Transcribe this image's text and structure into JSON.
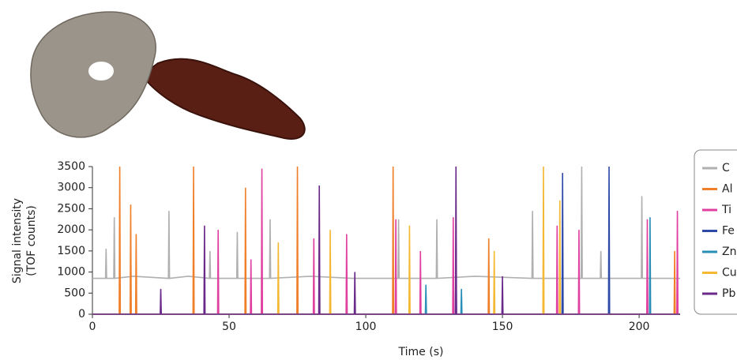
{
  "chart_data": {
    "type": "line",
    "xlabel": "Time (s)",
    "ylabel": [
      "Signal intensity",
      "(TOF counts)"
    ],
    "xlim": [
      0,
      215
    ],
    "xticks": [
      0,
      50,
      100,
      150,
      200
    ],
    "ylim": [
      0,
      3500
    ],
    "yticks": [
      0,
      500,
      1000,
      1500,
      2000,
      2500,
      3000,
      3500
    ],
    "legend": "right",
    "series": [
      {
        "name": "C",
        "color": "#b0b0b0",
        "x": [
          0,
          4.8,
          5,
          5.2,
          7.8,
          8,
          8.2,
          15,
          27.8,
          28,
          28.2,
          35,
          42.8,
          43,
          43.2,
          52.8,
          53,
          53.2,
          64.8,
          65,
          65.2,
          80,
          95,
          111.8,
          112,
          112.2,
          125.8,
          126,
          126.2,
          140,
          160.8,
          161,
          161.2,
          178.8,
          179,
          179.2,
          185.8,
          186,
          186.2,
          200.8,
          201,
          201.2,
          215
        ],
        "values": [
          850,
          850,
          1550,
          850,
          850,
          2300,
          850,
          900,
          850,
          2450,
          850,
          900,
          850,
          1500,
          850,
          850,
          1950,
          850,
          850,
          2250,
          850,
          900,
          850,
          850,
          2250,
          850,
          850,
          2250,
          850,
          900,
          850,
          2450,
          850,
          850,
          3500,
          850,
          850,
          1500,
          850,
          850,
          2800,
          850,
          850
        ]
      },
      {
        "name": "Al",
        "color": "#f07f2a",
        "x": [
          0,
          9.8,
          10,
          10.2,
          13.8,
          14,
          14.2,
          15.8,
          16,
          16.2,
          36.8,
          37,
          37.2,
          55.8,
          56,
          56.2,
          74.8,
          75,
          75.2,
          109.8,
          110,
          110.2,
          144.8,
          145,
          145.2,
          212.8,
          213,
          213.2,
          215
        ],
        "values": [
          0,
          0,
          3500,
          0,
          0,
          2600,
          0,
          0,
          1900,
          0,
          0,
          3500,
          0,
          0,
          3000,
          0,
          0,
          3500,
          0,
          0,
          3500,
          0,
          0,
          1800,
          0,
          0,
          1500,
          0,
          0
        ]
      },
      {
        "name": "Ti",
        "color": "#e040a0",
        "x": [
          0,
          45.8,
          46,
          46.2,
          57.8,
          58,
          58.2,
          61.8,
          62,
          62.2,
          80.8,
          81,
          81.2,
          92.8,
          93,
          93.2,
          110.8,
          111,
          111.2,
          119.8,
          120,
          120.2,
          131.8,
          132,
          132.2,
          169.8,
          170,
          170.2,
          177.8,
          178,
          178.2,
          202.8,
          203,
          203.2,
          213.8,
          214,
          214.2,
          215
        ],
        "values": [
          0,
          0,
          2000,
          0,
          0,
          1300,
          0,
          0,
          3450,
          0,
          0,
          1800,
          0,
          0,
          1900,
          0,
          0,
          2250,
          0,
          0,
          1500,
          0,
          0,
          2300,
          0,
          0,
          2100,
          0,
          0,
          2000,
          0,
          0,
          2250,
          0,
          0,
          2450,
          0,
          0
        ]
      },
      {
        "name": "Fe",
        "color": "#2e4aa8",
        "x": [
          0,
          132.8,
          133,
          133.2,
          171.8,
          172,
          172.2,
          188.8,
          189,
          189.2,
          215
        ],
        "values": [
          0,
          0,
          1800,
          0,
          0,
          3350,
          0,
          0,
          3500,
          0,
          0
        ]
      },
      {
        "name": "Zn",
        "color": "#2a8fb8",
        "x": [
          0,
          121.8,
          122,
          122.2,
          134.8,
          135,
          135.2,
          203.8,
          204,
          204.2,
          215
        ],
        "values": [
          0,
          0,
          700,
          0,
          0,
          600,
          0,
          0,
          2300,
          0,
          0
        ]
      },
      {
        "name": "Cu",
        "color": "#f5b833",
        "x": [
          0,
          67.8,
          68,
          68.2,
          86.8,
          87,
          87.2,
          115.8,
          116,
          116.2,
          146.8,
          147,
          147.2,
          164.8,
          165,
          165.2,
          170.8,
          171,
          171.2,
          215
        ],
        "values": [
          0,
          0,
          1700,
          0,
          0,
          2000,
          0,
          0,
          2100,
          0,
          0,
          1500,
          0,
          0,
          3500,
          0,
          0,
          2700,
          0,
          0
        ]
      },
      {
        "name": "Pb",
        "color": "#6a2a8a",
        "x": [
          0,
          24.8,
          25,
          25.2,
          40.8,
          41,
          41.2,
          82.8,
          83,
          83.2,
          95.8,
          96,
          96.2,
          132.8,
          133,
          133.2,
          149.8,
          150,
          150.2,
          215
        ],
        "values": [
          0,
          0,
          600,
          0,
          0,
          2100,
          0,
          0,
          3050,
          0,
          0,
          1000,
          0,
          0,
          3500,
          0,
          0,
          900,
          0,
          0
        ]
      }
    ]
  }
}
